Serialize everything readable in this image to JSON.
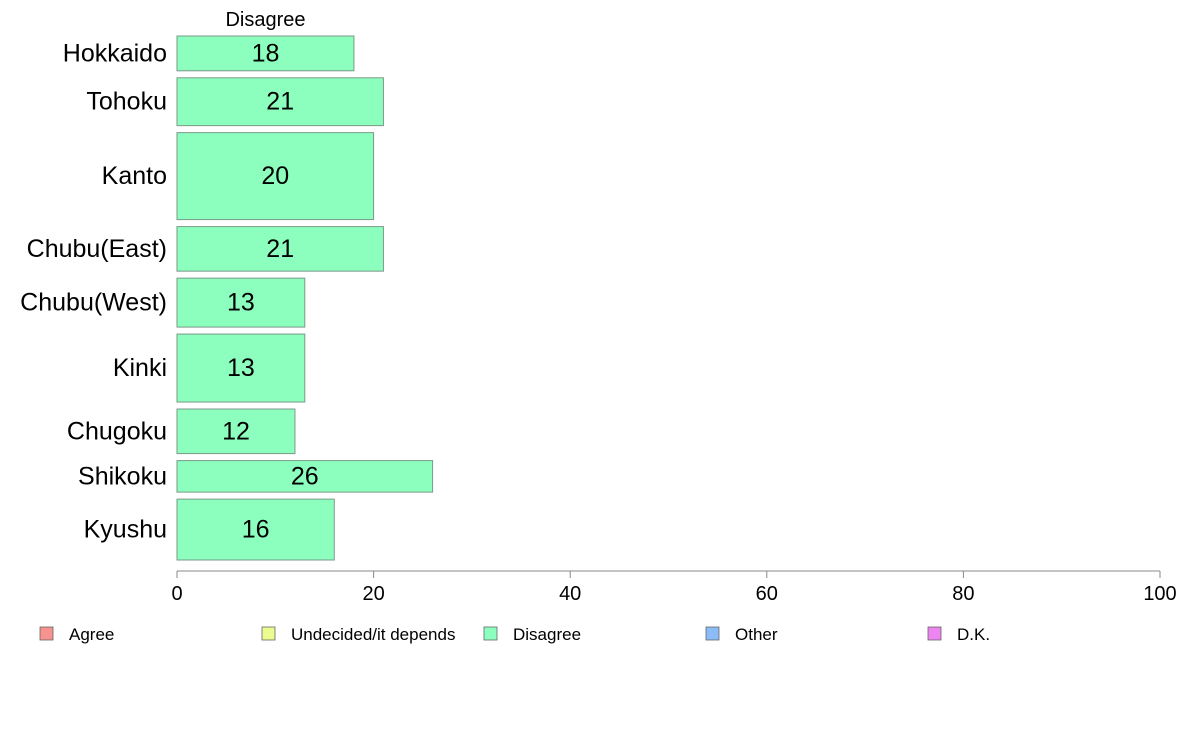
{
  "chart_data": {
    "type": "bar",
    "orientation": "horizontal",
    "stacked": true,
    "column_header": "Disagree",
    "categories": [
      "Hokkaido",
      "Tohoku",
      "Kanto",
      "Chubu(East)",
      "Chubu(West)",
      "Kinki",
      "Chugoku",
      "Shikoku",
      "Kyushu"
    ],
    "category_weights": [
      0.64,
      0.88,
      1.6,
      0.82,
      0.9,
      1.25,
      0.82,
      0.58,
      1.12
    ],
    "series": [
      {
        "name": "Disagree",
        "values": [
          18,
          21,
          20,
          21,
          13,
          13,
          12,
          26,
          16
        ],
        "labels": [
          "18",
          "21",
          "20",
          "21",
          "13",
          "13",
          "12",
          "26",
          "16"
        ],
        "color": "#8cffbe"
      }
    ],
    "xlim": [
      0,
      100
    ],
    "xticks": [
      0,
      20,
      40,
      60,
      80,
      100
    ],
    "xtick_labels": [
      "0",
      "20",
      "40",
      "60",
      "80",
      "100"
    ],
    "grid": false,
    "legend_position": "bottom",
    "legend": [
      {
        "label": "Agree",
        "color": "#f7938f"
      },
      {
        "label": "Undecided/it depends",
        "color": "#ecfb8f"
      },
      {
        "label": "Disagree",
        "color": "#8cffbe"
      },
      {
        "label": "Other",
        "color": "#8cbcf7"
      },
      {
        "label": "D.K.",
        "color": "#ec84f1"
      }
    ]
  }
}
